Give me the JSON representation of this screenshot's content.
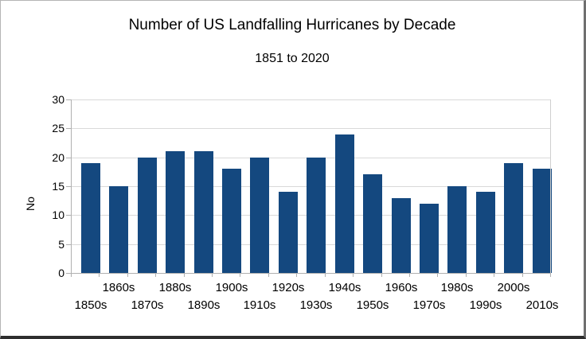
{
  "chart_data": {
    "type": "bar",
    "title": "Number of US Landfalling Hurricanes by Decade",
    "subtitle": "1851 to 2020",
    "xlabel": "",
    "ylabel": "No",
    "categories": [
      "1850s",
      "1860s",
      "1870s",
      "1880s",
      "1890s",
      "1900s",
      "1910s",
      "1920s",
      "1930s",
      "1940s",
      "1950s",
      "1960s",
      "1970s",
      "1980s",
      "1990s",
      "2000s",
      "2010s"
    ],
    "values": [
      19,
      15,
      20,
      21,
      21,
      18,
      20,
      14,
      20,
      24,
      17,
      13,
      12,
      15,
      14,
      19,
      18
    ],
    "ylim": [
      0,
      30
    ],
    "ytick_step": 5,
    "ytick_labels": [
      "0",
      "5",
      "10",
      "15",
      "20",
      "25",
      "30"
    ],
    "grid": "horizontal",
    "legend_position": "none",
    "x_label_layout": "staggered-two-rows",
    "bar_color": "#14487F",
    "gridline_color": "#D9D9D9",
    "axis_color": "#B0B0B0",
    "text_color": "#000000",
    "background_color": "#FFFFFF"
  }
}
